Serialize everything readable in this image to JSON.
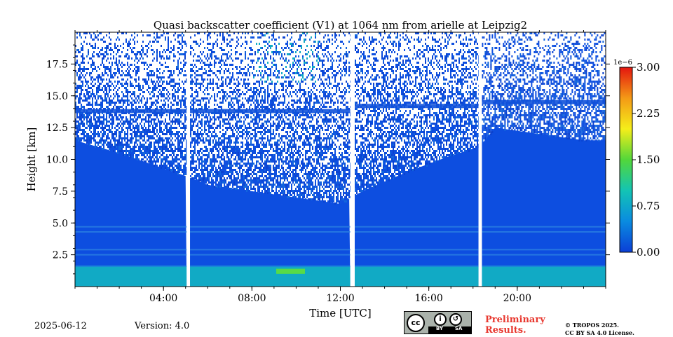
{
  "chart_data": {
    "type": "heatmap",
    "title": "Quasi backscatter coefficient (V1) at 1064 nm from arielle at Leipzig2",
    "xlabel": "Time [UTC]",
    "ylabel": "Height [km]",
    "xlim": [
      0,
      24
    ],
    "ylim": [
      0,
      20
    ],
    "x_ticks": [
      {
        "value": 4,
        "label": "04:00"
      },
      {
        "value": 8,
        "label": "08:00"
      },
      {
        "value": 12,
        "label": "12:00"
      },
      {
        "value": 16,
        "label": "16:00"
      },
      {
        "value": 20,
        "label": "20:00"
      }
    ],
    "y_ticks": [
      {
        "value": 2.5,
        "label": "2.5"
      },
      {
        "value": 5.0,
        "label": "5.0"
      },
      {
        "value": 7.5,
        "label": "7.5"
      },
      {
        "value": 10.0,
        "label": "10.0"
      },
      {
        "value": 12.5,
        "label": "12.5"
      },
      {
        "value": 15.0,
        "label": "15.0"
      },
      {
        "value": 17.5,
        "label": "17.5"
      }
    ],
    "colorbar": {
      "scale_label": "1e−6",
      "range": [
        0,
        3
      ],
      "ticks": [
        {
          "value": 0,
          "label": "0.00"
        },
        {
          "value": 0.75,
          "label": "0.75"
        },
        {
          "value": 1.5,
          "label": "1.50"
        },
        {
          "value": 2.25,
          "label": "2.25"
        },
        {
          "value": 3.0,
          "label": "3.00"
        }
      ],
      "colors": [
        "#0b3fd6",
        "#0a8be0",
        "#13c4b4",
        "#52d73a",
        "#f5ee1a",
        "#f49a16",
        "#e4160f"
      ]
    },
    "data_gaps_hours": [
      [
        5.05,
        5.2
      ],
      [
        12.45,
        12.65
      ],
      [
        18.25,
        18.4
      ]
    ],
    "background_color": "#0d4ee0",
    "boundary_layer": {
      "top_km": 1.6,
      "color": "#11aac5"
    },
    "aerosol_layers_km": [
      4.7,
      4.3,
      2.9,
      2.5
    ],
    "cirrus_layers": [
      {
        "start_h": 0,
        "end_h": 5.05,
        "height_km": 13.8
      },
      {
        "start_h": 5.2,
        "end_h": 12.45,
        "height_km": 13.8
      },
      {
        "start_h": 12.65,
        "end_h": 18.25,
        "height_km": 14.2
      },
      {
        "start_h": 18.4,
        "end_h": 24,
        "height_km": 14.5
      }
    ],
    "enhanced_patch": {
      "start_h": 9.1,
      "end_h": 10.4,
      "bottom_km": 1.0,
      "top_km": 1.4,
      "color": "#5fe03a"
    },
    "solid_signal_top_km": [
      [
        0,
        11.5
      ],
      [
        2,
        10.5
      ],
      [
        4,
        9.3
      ],
      [
        5,
        8.7
      ],
      [
        6,
        8.0
      ],
      [
        8,
        7.5
      ],
      [
        10,
        7.0
      ],
      [
        12,
        6.5
      ],
      [
        13,
        7.5
      ],
      [
        15,
        9.0
      ],
      [
        17,
        10.3
      ],
      [
        18.3,
        11.0
      ],
      [
        19,
        12.5
      ],
      [
        21,
        12.0
      ],
      [
        23,
        11.5
      ],
      [
        24,
        11.5
      ]
    ]
  },
  "footer": {
    "date": "2025-06-12",
    "version": "Version: 4.0",
    "license_badge": {
      "logo": "cc",
      "by": "BY",
      "sa": "SA"
    },
    "preliminary_line1": "Preliminary",
    "preliminary_line2": "Results.",
    "copyright_line1": "© TROPOS 2025.",
    "copyright_line2": "CC BY SA 4.0 License."
  }
}
